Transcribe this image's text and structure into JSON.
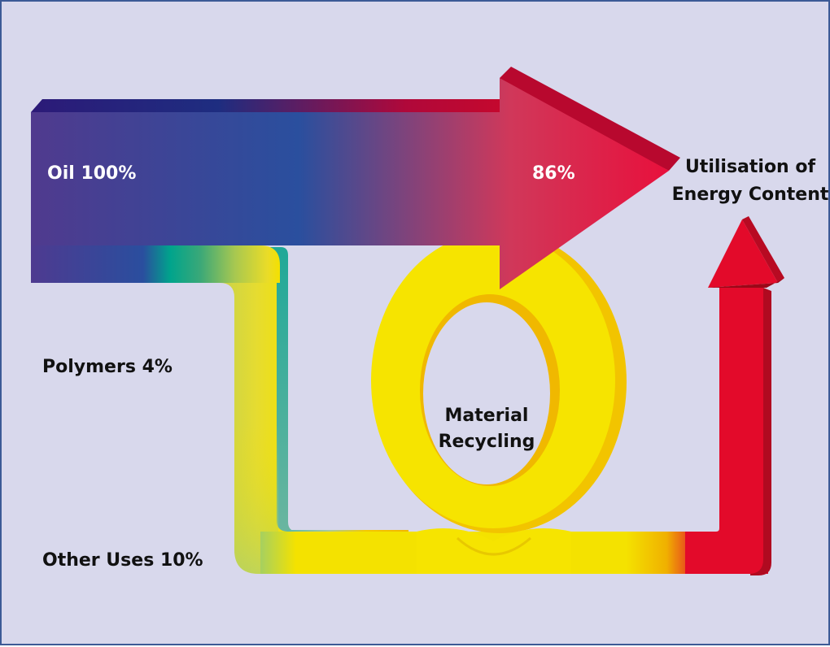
{
  "labels": {
    "oil": "Oil 100%",
    "energy_share": "86%",
    "utilisation_line1": "Utilisation of",
    "utilisation_line2": "Energy Content",
    "polymers": "Polymers 4%",
    "other_uses": "Other Uses 10%",
    "recycling_line1": "Material",
    "recycling_line2": "Recycling"
  },
  "colors": {
    "background": "#d8d8ec",
    "border": "#3c5a96",
    "oil_start": "#4e3a8c",
    "oil_mid": "#2b4e9e",
    "arrow_red": "#e0103a",
    "polymer_teal": "#00a68c",
    "polymer_yellow": "#f4e200",
    "loop_yellow": "#f6e400",
    "energy_red": "#e30a2a"
  }
}
